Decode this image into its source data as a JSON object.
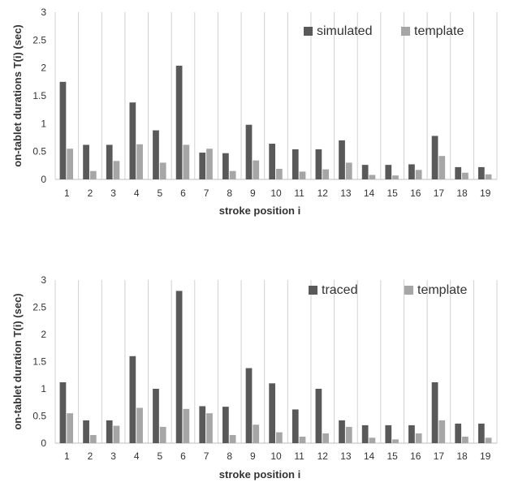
{
  "chart_data": [
    {
      "type": "bar",
      "xlabel": "stroke position i",
      "ylabel": "on-tablet durations  T(i) (sec)",
      "ylim": [
        0,
        3
      ],
      "yticks": [
        "0",
        "0.5",
        "1",
        "1.5",
        "2",
        "2.5",
        "3"
      ],
      "grid": "vertical",
      "legend": "top-right",
      "categories": [
        "1",
        "2",
        "3",
        "4",
        "5",
        "6",
        "7",
        "8",
        "9",
        "10",
        "11",
        "12",
        "13",
        "14",
        "15",
        "16",
        "17",
        "18",
        "19"
      ],
      "series": [
        {
          "name": "simulated",
          "color": "#595959",
          "values": [
            1.75,
            0.62,
            0.62,
            1.38,
            0.88,
            2.04,
            0.48,
            0.47,
            0.98,
            0.64,
            0.54,
            0.54,
            0.7,
            0.26,
            0.26,
            0.27,
            0.78,
            0.22,
            0.22
          ]
        },
        {
          "name": "template",
          "color": "#a6a6a6",
          "values": [
            0.55,
            0.15,
            0.33,
            0.63,
            0.3,
            0.62,
            0.55,
            0.15,
            0.34,
            0.19,
            0.14,
            0.18,
            0.3,
            0.08,
            0.07,
            0.17,
            0.42,
            0.12,
            0.09
          ]
        }
      ]
    },
    {
      "type": "bar",
      "xlabel": "stroke position i",
      "ylabel": "on-tablet duration  T(i) (sec)",
      "ylim": [
        0,
        3
      ],
      "yticks": [
        "0",
        "0.5",
        "1",
        "1.5",
        "2",
        "2.5",
        "3"
      ],
      "grid": "vertical",
      "legend": "top-right",
      "categories": [
        "1",
        "2",
        "3",
        "4",
        "5",
        "6",
        "7",
        "8",
        "9",
        "10",
        "11",
        "12",
        "13",
        "14",
        "15",
        "16",
        "17",
        "18",
        "19"
      ],
      "series": [
        {
          "name": "traced",
          "color": "#595959",
          "values": [
            1.12,
            0.42,
            0.42,
            1.6,
            1.0,
            2.8,
            0.68,
            0.67,
            1.38,
            1.1,
            0.62,
            1.0,
            0.42,
            0.33,
            0.33,
            0.33,
            1.12,
            0.36,
            0.36
          ]
        },
        {
          "name": "template",
          "color": "#a6a6a6",
          "values": [
            0.55,
            0.15,
            0.32,
            0.65,
            0.3,
            0.63,
            0.55,
            0.15,
            0.34,
            0.2,
            0.12,
            0.18,
            0.3,
            0.1,
            0.07,
            0.18,
            0.42,
            0.12,
            0.1
          ]
        }
      ]
    }
  ]
}
